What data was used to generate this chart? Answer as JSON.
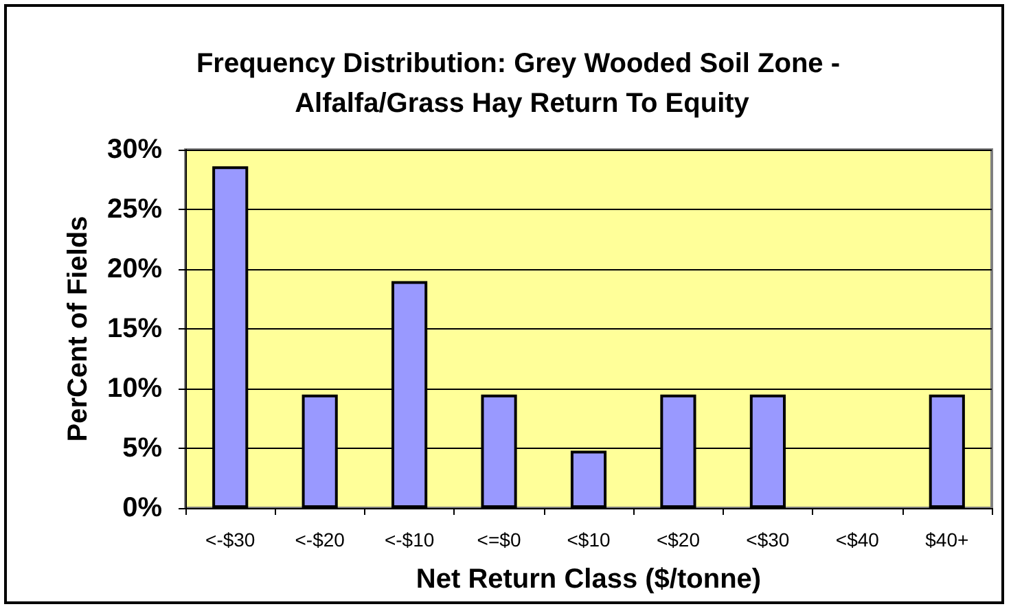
{
  "chart_data": {
    "type": "bar",
    "title": "Frequency Distribution: Grey Wooded Soil Zone - Alfalfa/Grass Hay Return To Equity",
    "xlabel": "Net Return Class ($/tonne)",
    "ylabel": "PerCent of Fields",
    "categories": [
      "<-$30",
      "<-$20",
      "<-$10",
      "<=$0",
      "<$10",
      "<$20",
      "<$30",
      "<$40",
      "$40+"
    ],
    "values": [
      28.6,
      9.5,
      19.0,
      9.5,
      4.8,
      9.5,
      9.5,
      0,
      9.5
    ],
    "color": "#9999ff",
    "ylim": [
      0,
      30
    ],
    "yticks": [
      {
        "value": 0,
        "label": "0%"
      },
      {
        "value": 5,
        "label": "5%"
      },
      {
        "value": 10,
        "label": "10%"
      },
      {
        "value": 15,
        "label": "15%"
      },
      {
        "value": 20,
        "label": "20%"
      },
      {
        "value": 25,
        "label": "25%"
      },
      {
        "value": 30,
        "label": "30%"
      }
    ],
    "grid": "y"
  }
}
